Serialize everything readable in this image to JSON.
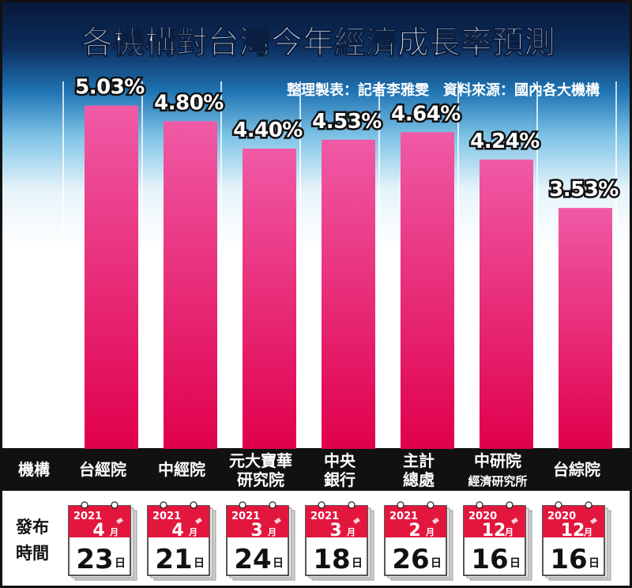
{
  "header": {
    "title": "各機構對台灣今年經濟成長率預測",
    "credit": "整理製表：記者李雅雯　資料來源：國內各大機構"
  },
  "table": {
    "row_label_institution": "機構",
    "row_label_release_1": "發布",
    "row_label_release_2": "時間",
    "day_unit": "日",
    "month_unit": "月"
  },
  "colors": {
    "bar_top": "#f05aa6",
    "bar_bottom": "#e0004c",
    "header_dark": "#0a1e40",
    "row_band": "#111111",
    "calendar_red": "#e3173e"
  },
  "chart_data": {
    "type": "bar",
    "title": "各機構對台灣今年經濟成長率預測",
    "ylabel": "",
    "xlabel": "",
    "ylim": [
      0,
      5.5
    ],
    "grid": false,
    "categories": [
      "台經院",
      "中經院",
      "元大寶華研究院",
      "中央銀行",
      "主計總處",
      "中研院經濟研究所",
      "台綜院"
    ],
    "category_lines": [
      [
        "台經院"
      ],
      [
        "中經院"
      ],
      [
        "元大寶華",
        "研究院"
      ],
      [
        "中央",
        "銀行"
      ],
      [
        "主計",
        "總處"
      ],
      [
        "中研院",
        "經濟研究所"
      ],
      [
        "台綜院"
      ]
    ],
    "values": [
      5.03,
      4.8,
      4.4,
      4.53,
      4.64,
      4.24,
      3.53
    ],
    "value_labels": [
      "5.03%",
      "4.80%",
      "4.40%",
      "4.53%",
      "4.64%",
      "4.24%",
      "3.53%"
    ],
    "release_dates": [
      {
        "year": "2021",
        "month": "4",
        "day": "23"
      },
      {
        "year": "2021",
        "month": "4",
        "day": "21"
      },
      {
        "year": "2021",
        "month": "3",
        "day": "24"
      },
      {
        "year": "2021",
        "month": "3",
        "day": "18"
      },
      {
        "year": "2021",
        "month": "2",
        "day": "26"
      },
      {
        "year": "2020",
        "month": "12",
        "day": "16"
      },
      {
        "year": "2020",
        "month": "12",
        "day": "16"
      }
    ]
  }
}
